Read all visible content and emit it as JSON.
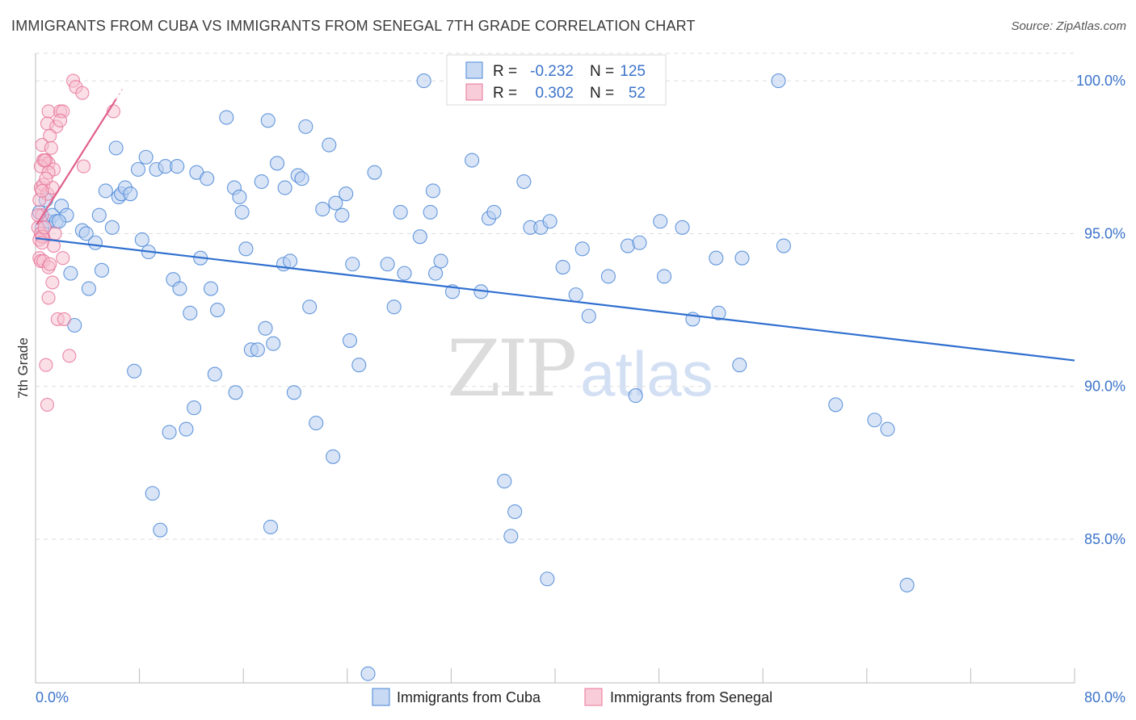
{
  "title": "IMMIGRANTS FROM CUBA VS IMMIGRANTS FROM SENEGAL 7TH GRADE CORRELATION CHART",
  "source": "Source: ZipAtlas.com",
  "watermark": {
    "zip": "ZIP",
    "atlas": "atlas"
  },
  "colors": {
    "cuba": "#4a86d6",
    "cuba_fill": "#b9d0f0",
    "senegal": "#e8749a",
    "senegal_fill": "#f6c0d0",
    "value_text": "#3b73c9",
    "grid": "#dddddd"
  },
  "legend_box": {
    "rows": [
      {
        "r_label": "R =",
        "r_value": "-0.232",
        "n_label": "N =",
        "n_value": "125"
      },
      {
        "r_label": "R =",
        "r_value": "0.302",
        "n_label": "N =",
        "n_value": "52"
      }
    ]
  },
  "chart_data": {
    "type": "scatter",
    "title": "IMMIGRANTS FROM CUBA VS IMMIGRANTS FROM SENEGAL 7TH GRADE CORRELATION CHART",
    "xlabel": "",
    "ylabel": "7th Grade",
    "xlim": [
      0,
      80
    ],
    "ylim": [
      80.3,
      100.9
    ],
    "x_tick_labels": [
      "0.0%",
      "80.0%"
    ],
    "y_ticks": [
      85,
      90,
      95,
      100
    ],
    "y_tick_labels": [
      "85.0%",
      "90.0%",
      "95.0%",
      "100.0%"
    ],
    "grid": true,
    "legend_position": "bottom",
    "series": [
      {
        "name": "Immigrants from Cuba",
        "r": -0.232,
        "n": 125,
        "trend": {
          "x": [
            0,
            80
          ],
          "y": [
            94.85,
            90.85
          ]
        },
        "points": [
          [
            0.3,
            95.7
          ],
          [
            0.5,
            95.2
          ],
          [
            0.8,
            96.1
          ],
          [
            1.0,
            95.4
          ],
          [
            1.3,
            95.6
          ],
          [
            1.6,
            95.4
          ],
          [
            2.0,
            95.9
          ],
          [
            2.4,
            95.6
          ],
          [
            2.7,
            93.7
          ],
          [
            3.0,
            92.0
          ],
          [
            3.6,
            95.1
          ],
          [
            3.9,
            95.0
          ],
          [
            4.1,
            93.2
          ],
          [
            4.6,
            94.7
          ],
          [
            4.9,
            95.6
          ],
          [
            5.1,
            93.8
          ],
          [
            5.4,
            96.4
          ],
          [
            5.9,
            95.2
          ],
          [
            6.2,
            97.8
          ],
          [
            6.4,
            96.2
          ],
          [
            6.6,
            96.3
          ],
          [
            6.9,
            96.5
          ],
          [
            7.3,
            96.3
          ],
          [
            7.6,
            90.5
          ],
          [
            7.9,
            97.1
          ],
          [
            8.2,
            94.8
          ],
          [
            8.5,
            97.5
          ],
          [
            8.7,
            94.4
          ],
          [
            9.0,
            86.5
          ],
          [
            9.3,
            97.1
          ],
          [
            9.6,
            85.3
          ],
          [
            10.0,
            97.2
          ],
          [
            10.3,
            88.5
          ],
          [
            10.6,
            93.5
          ],
          [
            10.9,
            97.2
          ],
          [
            11.1,
            93.2
          ],
          [
            11.6,
            88.6
          ],
          [
            11.9,
            92.4
          ],
          [
            12.2,
            89.3
          ],
          [
            12.4,
            97.0
          ],
          [
            12.7,
            94.2
          ],
          [
            13.2,
            96.8
          ],
          [
            13.5,
            93.2
          ],
          [
            13.8,
            90.4
          ],
          [
            14.0,
            92.5
          ],
          [
            14.7,
            98.8
          ],
          [
            15.3,
            96.5
          ],
          [
            15.4,
            89.8
          ],
          [
            15.7,
            96.2
          ],
          [
            15.9,
            95.7
          ],
          [
            16.2,
            94.5
          ],
          [
            16.6,
            91.2
          ],
          [
            17.1,
            91.2
          ],
          [
            17.4,
            96.7
          ],
          [
            17.7,
            91.9
          ],
          [
            17.9,
            98.7
          ],
          [
            18.1,
            85.4
          ],
          [
            18.3,
            91.4
          ],
          [
            18.6,
            97.3
          ],
          [
            19.1,
            94.0
          ],
          [
            19.2,
            96.5
          ],
          [
            19.6,
            94.1
          ],
          [
            19.9,
            89.8
          ],
          [
            20.2,
            96.9
          ],
          [
            20.5,
            96.8
          ],
          [
            20.8,
            98.5
          ],
          [
            21.1,
            92.6
          ],
          [
            21.6,
            88.8
          ],
          [
            22.1,
            95.8
          ],
          [
            22.6,
            97.9
          ],
          [
            22.9,
            87.7
          ],
          [
            23.1,
            96.0
          ],
          [
            23.6,
            95.6
          ],
          [
            23.9,
            96.3
          ],
          [
            24.2,
            91.5
          ],
          [
            24.4,
            94.0
          ],
          [
            24.9,
            90.7
          ],
          [
            25.6,
            80.6
          ],
          [
            26.1,
            97.0
          ],
          [
            27.1,
            94.0
          ],
          [
            27.6,
            92.6
          ],
          [
            28.1,
            95.7
          ],
          [
            28.4,
            93.7
          ],
          [
            29.6,
            94.9
          ],
          [
            29.9,
            100.0
          ],
          [
            30.4,
            95.7
          ],
          [
            30.6,
            96.4
          ],
          [
            30.8,
            93.7
          ],
          [
            31.2,
            94.1
          ],
          [
            32.1,
            93.1
          ],
          [
            33.6,
            97.4
          ],
          [
            34.3,
            93.1
          ],
          [
            34.9,
            95.5
          ],
          [
            35.3,
            95.7
          ],
          [
            36.1,
            86.9
          ],
          [
            36.6,
            85.1
          ],
          [
            36.9,
            85.9
          ],
          [
            37.6,
            96.7
          ],
          [
            38.1,
            95.2
          ],
          [
            38.9,
            95.2
          ],
          [
            39.4,
            83.7
          ],
          [
            39.6,
            95.4
          ],
          [
            40.6,
            93.9
          ],
          [
            41.6,
            93.0
          ],
          [
            42.1,
            94.5
          ],
          [
            42.6,
            92.3
          ],
          [
            44.1,
            93.6
          ],
          [
            45.6,
            94.6
          ],
          [
            46.2,
            89.7
          ],
          [
            46.5,
            94.7
          ],
          [
            48.1,
            95.4
          ],
          [
            48.4,
            93.6
          ],
          [
            49.8,
            95.2
          ],
          [
            50.6,
            92.2
          ],
          [
            52.4,
            94.2
          ],
          [
            52.6,
            92.4
          ],
          [
            54.2,
            90.7
          ],
          [
            54.4,
            94.2
          ],
          [
            57.2,
            100.0
          ],
          [
            57.6,
            94.6
          ],
          [
            61.6,
            89.4
          ],
          [
            64.6,
            88.9
          ],
          [
            65.6,
            88.6
          ],
          [
            67.1,
            83.5
          ],
          [
            1.8,
            95.4
          ]
        ]
      },
      {
        "name": "Immigrants from Senegal",
        "r": 0.302,
        "n": 52,
        "trend": {
          "x": [
            0.1,
            6.2
          ],
          "y": [
            95.3,
            99.4
          ]
        },
        "points": [
          [
            2.9,
            100.0
          ],
          [
            3.1,
            99.8
          ],
          [
            3.6,
            99.6
          ],
          [
            1.0,
            99.0
          ],
          [
            1.9,
            99.0
          ],
          [
            2.1,
            99.0
          ],
          [
            6.0,
            99.0
          ],
          [
            0.9,
            98.6
          ],
          [
            1.6,
            98.5
          ],
          [
            1.9,
            98.7
          ],
          [
            1.1,
            98.2
          ],
          [
            0.5,
            97.9
          ],
          [
            1.2,
            97.8
          ],
          [
            0.6,
            97.4
          ],
          [
            0.8,
            97.4
          ],
          [
            1.0,
            97.3
          ],
          [
            0.4,
            97.2
          ],
          [
            0.7,
            97.4
          ],
          [
            1.4,
            97.1
          ],
          [
            1.0,
            97.0
          ],
          [
            3.7,
            97.2
          ],
          [
            0.4,
            96.5
          ],
          [
            0.6,
            96.6
          ],
          [
            0.9,
            96.3
          ],
          [
            1.3,
            96.5
          ],
          [
            0.3,
            96.1
          ],
          [
            0.5,
            95.6
          ],
          [
            0.2,
            95.2
          ],
          [
            0.4,
            95.0
          ],
          [
            0.6,
            94.9
          ],
          [
            0.3,
            94.8
          ],
          [
            0.5,
            94.9
          ],
          [
            1.4,
            94.6
          ],
          [
            0.5,
            94.7
          ],
          [
            0.3,
            94.2
          ],
          [
            0.4,
            94.1
          ],
          [
            0.6,
            94.1
          ],
          [
            1.0,
            93.9
          ],
          [
            2.1,
            94.2
          ],
          [
            1.0,
            92.9
          ],
          [
            1.7,
            92.2
          ],
          [
            2.2,
            92.2
          ],
          [
            0.8,
            90.7
          ],
          [
            2.6,
            91.0
          ],
          [
            0.9,
            89.4
          ],
          [
            0.2,
            95.6
          ],
          [
            0.7,
            95.2
          ],
          [
            1.1,
            94.0
          ],
          [
            0.5,
            96.4
          ],
          [
            1.5,
            95.0
          ],
          [
            0.8,
            96.8
          ],
          [
            1.3,
            93.4
          ]
        ]
      }
    ]
  }
}
